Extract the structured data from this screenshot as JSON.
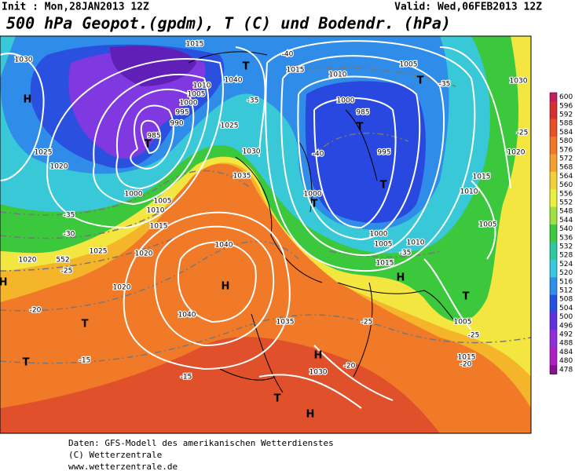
{
  "header": {
    "init": "Init : Mon,28JAN2013 12Z",
    "valid": "Valid: Wed,06FEB2013 12Z",
    "title": "500 hPa Geopot.(gpdm), T (C) und Bodendr. (hPa)"
  },
  "colorbar": {
    "labels": [
      600,
      596,
      592,
      588,
      584,
      580,
      576,
      572,
      568,
      564,
      560,
      556,
      552,
      548,
      544,
      540,
      536,
      532,
      528,
      524,
      520,
      516,
      512,
      508,
      504,
      500,
      496,
      492,
      488,
      484,
      480,
      478
    ]
  },
  "map_labels": [
    "1030",
    "H",
    "1025",
    "1020",
    "-35",
    "-30",
    "1020",
    "1025",
    "-25",
    "1020",
    "1020",
    "-20",
    "T",
    "T",
    "-15",
    "T",
    "985",
    "990",
    "995",
    "1000",
    "1005",
    "1010",
    "1015",
    "1000",
    "1005",
    "1010",
    "1015",
    "1040",
    "H",
    "1040",
    "1035",
    "-15",
    "1030",
    "H",
    "T",
    "H",
    "-20",
    "-25",
    "1035",
    "1030",
    "1025",
    "1040",
    "T",
    "-40",
    "1015",
    "-35",
    "1010",
    "1005",
    "T",
    "-35",
    "1000",
    "985",
    "T",
    "995",
    "-40",
    "T",
    "1000",
    "T",
    "1000",
    "1005",
    "1010",
    "-35",
    "1015",
    "H",
    "1010",
    "1015",
    "1020",
    "1005",
    "T",
    "1005",
    "-25",
    "1015",
    "-20",
    "1030",
    "-25",
    "552",
    "H"
  ],
  "footer": {
    "lines": [
      "Daten: GFS-Modell des amerikanischen Wetterdienstes",
      "(C) Wetterzentrale",
      "www.wetterzentrale.de"
    ]
  }
}
